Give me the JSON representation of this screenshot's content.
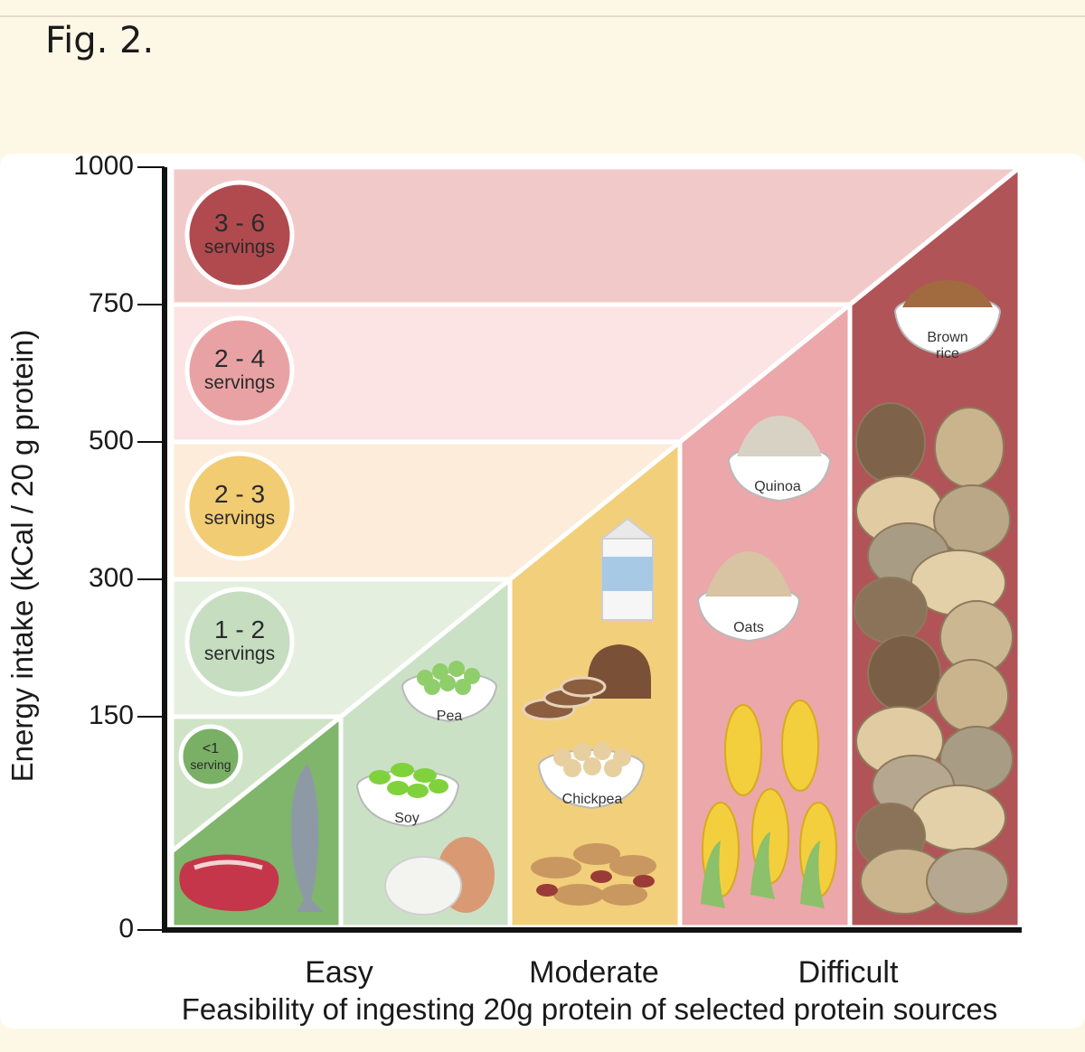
{
  "header": {
    "title": "Fig. 2."
  },
  "figure": {
    "y_axis": {
      "title": "Energy intake (kCal / 20 g protein)",
      "ticks": [
        1000,
        750,
        500,
        300,
        150,
        0
      ]
    },
    "x_axis": {
      "title": "Feasibility of ingesting 20g protein of selected protein sources",
      "categories": [
        "Easy",
        "Moderate",
        "Difficult"
      ]
    },
    "bands": [
      {
        "range": "3 - 6",
        "unit": "servings"
      },
      {
        "range": "2 - 4",
        "unit": "servings"
      },
      {
        "range": "2 - 3",
        "unit": "servings"
      },
      {
        "range": "1 - 2",
        "unit": "servings"
      },
      {
        "range": "<1",
        "unit": "serving"
      }
    ],
    "foods": [
      [
        "Pea"
      ],
      [
        "Soy"
      ],
      [
        "Chickpea"
      ],
      [
        "Quinoa"
      ],
      [
        "Oats"
      ],
      [
        "Brown",
        "rice"
      ]
    ]
  }
}
